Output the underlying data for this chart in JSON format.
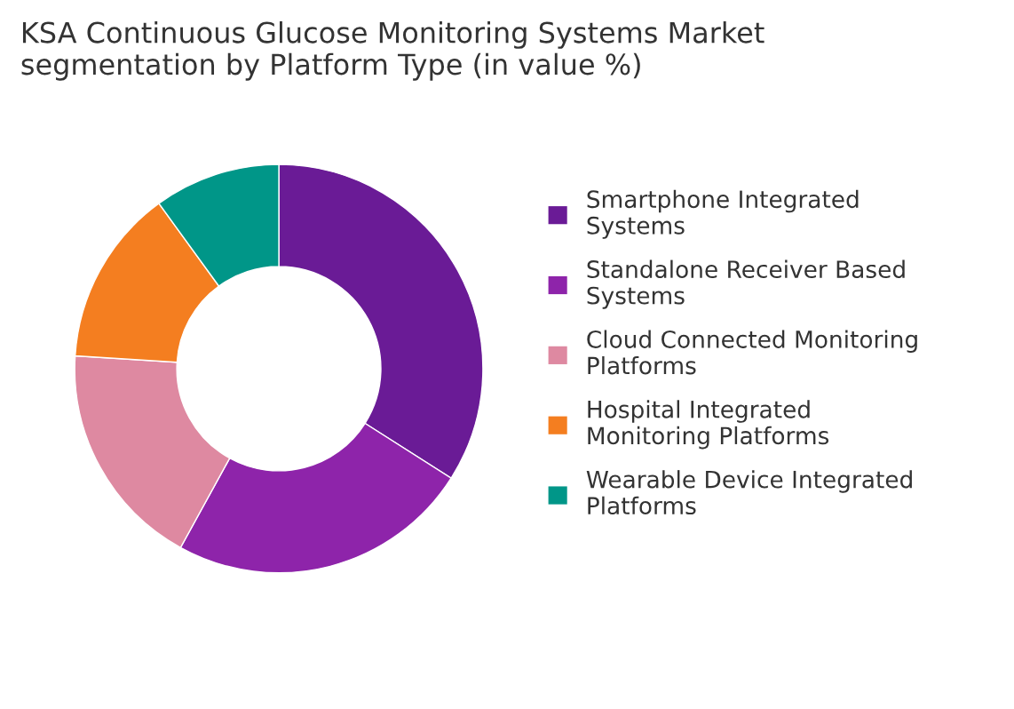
{
  "chart_data": {
    "type": "donut",
    "title": "KSA Continuous Glucose Monitoring Systems Market\nsegmentation by Platform Type (in value %)",
    "categories": [
      "Smartphone Integrated\nSystems",
      "Standalone Receiver Based\nSystems",
      "Cloud Connected Monitoring\nPlatforms",
      "Hospital Integrated\nMonitoring Platforms",
      "Wearable Device Integrated\nPlatforms"
    ],
    "values": [
      34,
      24,
      18,
      14,
      10
    ],
    "colors": [
      "#6a1b96",
      "#8e24aa",
      "#de89a1",
      "#f47e20",
      "#009688"
    ],
    "legend": "right"
  }
}
